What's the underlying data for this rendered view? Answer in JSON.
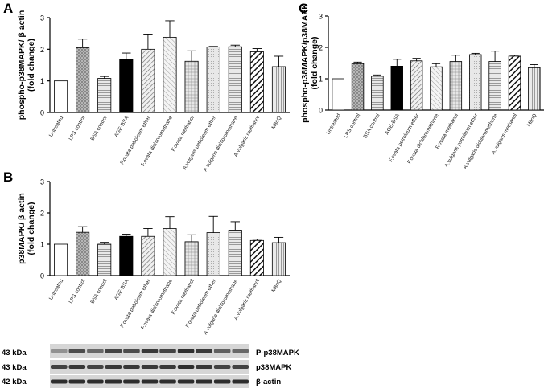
{
  "chart_data": [
    {
      "panel": "A",
      "type": "bar",
      "ylabel": "phospho-p38MAPK/ β actin\n(fold change)",
      "ylim": [
        0,
        3
      ],
      "yticks": [
        "0",
        "1",
        "2",
        "3"
      ],
      "categories": [
        "Untreated",
        "LPS control",
        "BSA control",
        "AGE-BSA",
        "F.ovata petroleum ether",
        "F.ovata dichloromethane",
        "F.ovata methanol",
        "A.vulgaris petroleum ether",
        "A.vulgaris dichloromethane",
        "A.vulgaris methanol",
        "MitoQ"
      ],
      "values": [
        1.0,
        2.05,
        1.08,
        1.68,
        2.0,
        2.38,
        1.62,
        2.07,
        2.08,
        1.92,
        1.45
      ],
      "errors": [
        0,
        0.27,
        0.06,
        0.2,
        0.48,
        0.52,
        0.33,
        0.02,
        0.05,
        0.1,
        0.33
      ],
      "grid": false
    },
    {
      "panel": "B",
      "type": "bar",
      "ylabel": "p38MAPK/ β actin\n(fold change)",
      "ylim": [
        0,
        3
      ],
      "yticks": [
        "0",
        "1",
        "2",
        "3"
      ],
      "categories": [
        "Untreated",
        "LPS control",
        "BSA control",
        "AGE-BSA",
        "F.ovata petroleum ether",
        "F.ovata dichloromethane",
        "F.ovata methanol",
        "F.ovata petroleum ether",
        "A.vulgaris dichloromethane",
        "A.vulgaris methanol",
        "MitoQ"
      ],
      "values": [
        1.0,
        1.38,
        1.0,
        1.25,
        1.25,
        1.5,
        1.08,
        1.37,
        1.45,
        1.12,
        1.05
      ],
      "errors": [
        0,
        0.18,
        0.06,
        0.07,
        0.25,
        0.38,
        0.22,
        0.52,
        0.27,
        0.04,
        0.17
      ],
      "grid": false
    },
    {
      "panel": "C",
      "type": "bar",
      "ylabel": "phospho-p38MAPK/p38MAPK\n(fold change)",
      "ylim": [
        0,
        3
      ],
      "yticks": [
        "0",
        "1",
        "2",
        "3"
      ],
      "categories": [
        "Untreated",
        "LPS control",
        "BSA control",
        "AGE-BSA",
        "F.ovata petroleum ether",
        "F.ovata dichloromethane",
        "F.ovata methanol",
        "A.vulgaris petroleum ether",
        "A.vulgaris dichloromethane",
        "A.vulgaris methanol",
        "MitoQ"
      ],
      "values": [
        1.0,
        1.48,
        1.08,
        1.4,
        1.57,
        1.38,
        1.55,
        1.77,
        1.55,
        1.72,
        1.35
      ],
      "errors": [
        0,
        0.05,
        0.04,
        0.22,
        0.08,
        0.1,
        0.2,
        0.04,
        0.33,
        0.03,
        0.1
      ],
      "grid": false
    }
  ],
  "blot": {
    "rows": [
      {
        "kda": "43 kDa",
        "label": "P-p38MAPK"
      },
      {
        "kda": "43 kDa",
        "label": "p38MAPK"
      },
      {
        "kda": "42 kDa",
        "label": "β-actin"
      }
    ]
  }
}
